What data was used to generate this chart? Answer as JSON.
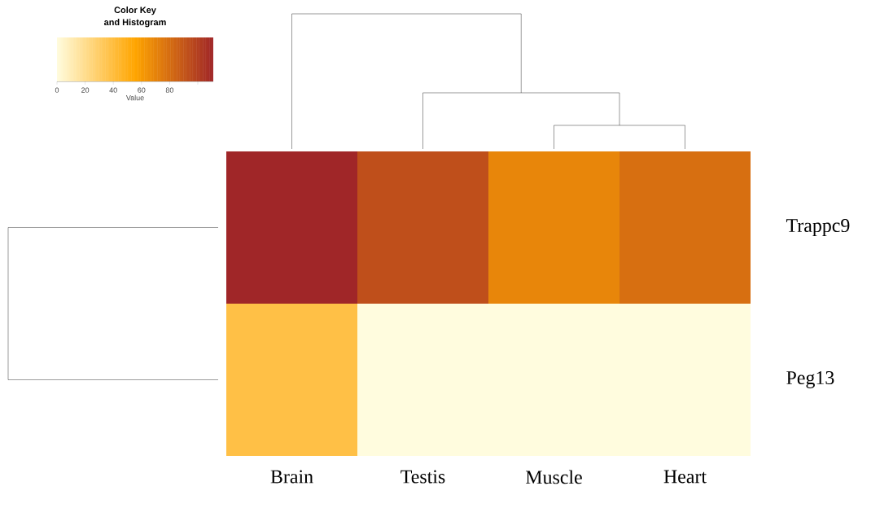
{
  "chart_data": {
    "type": "heatmap",
    "categories": [
      "Brain",
      "Testis",
      "Muscle",
      "Heart"
    ],
    "y_categories": [
      "Trappc9",
      "Peg13"
    ],
    "cells": [
      [
        111,
        93,
        69,
        79
      ],
      [
        38,
        0,
        0,
        0
      ]
    ],
    "clim": [
      0,
      111
    ],
    "cticks": [
      0,
      20,
      40,
      60,
      80,
      {
        "value": 100,
        "label": null
      }
    ],
    "clabel": "Value",
    "annotations": [
      "Color Key",
      "and Histogram"
    ]
  }
}
